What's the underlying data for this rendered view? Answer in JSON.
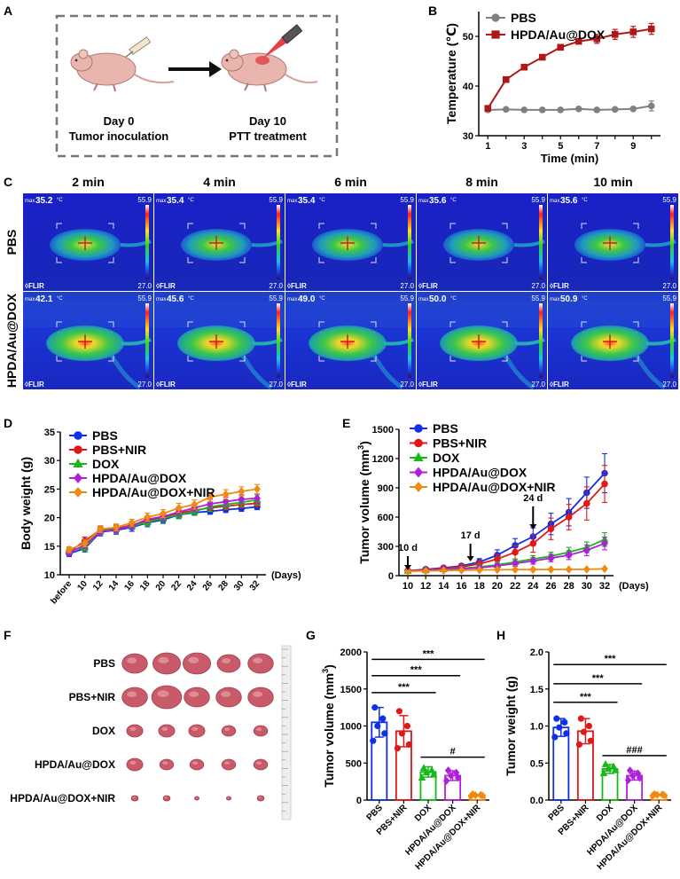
{
  "panel_labels": {
    "a": "A",
    "b": "B",
    "c": "C",
    "d": "D",
    "e": "E",
    "f": "F",
    "g": "G",
    "h": "H"
  },
  "panel_a": {
    "day0_line1": "Day 0",
    "day0_line2": "Tumor inoculation",
    "day10_line1": "Day 10",
    "day10_line2": "PTT treatment"
  },
  "panel_c": {
    "times": [
      "2 min",
      "4 min",
      "6 min",
      "8 min",
      "10 min"
    ],
    "rows": [
      {
        "label": "PBS",
        "max_values": [
          "35.2",
          "35.4",
          "35.4",
          "35.6",
          "35.6"
        ]
      },
      {
        "label": "HPDA/Au@DOX",
        "max_values": [
          "42.1",
          "45.6",
          "49.0",
          "50.0",
          "50.9"
        ]
      }
    ],
    "max_prefix": "max",
    "unit": "°C",
    "scale_max": "55.9",
    "scale_min": "27.0",
    "brand": "FLIR",
    "palette": {
      "bg": "#1a1ec8",
      "hot": "#ffe020"
    }
  },
  "panel_f": {
    "groups": [
      "PBS",
      "PBS+NIR",
      "DOX",
      "HPDA/Au@DOX",
      "HPDA/Au@DOX+NIR"
    ],
    "tumor_color": "#c85a6a"
  },
  "colors": {
    "PBS": "#1030e8",
    "PBS+NIR": "#e01818",
    "DOX": "#18b818",
    "HPDA/Au@DOX": "#b020d8",
    "HPDA/Au@DOX+NIR": "#f08a10",
    "B_PBS": "#808080",
    "B_HPDA": "#b01818"
  },
  "chart_data": [
    {
      "id": "B",
      "type": "line",
      "xlabel": "Time (min)",
      "ylabel": "Temperature (℃)",
      "xlim": [
        0.5,
        10.5
      ],
      "ylim": [
        30,
        55
      ],
      "xticks": [
        1,
        3,
        5,
        7,
        9
      ],
      "yticks": [
        30,
        40,
        50
      ],
      "x": [
        1,
        2,
        3,
        4,
        5,
        6,
        7,
        8,
        9,
        10
      ],
      "series": [
        {
          "name": "PBS",
          "color": "#808080",
          "marker": "circle",
          "values": [
            35.2,
            35.3,
            35.2,
            35.2,
            35.2,
            35.4,
            35.2,
            35.3,
            35.4,
            36.0
          ],
          "errors": [
            0.2,
            0.2,
            0.2,
            0.2,
            0.2,
            0.2,
            0.2,
            0.2,
            0.3,
            1.0
          ]
        },
        {
          "name": "HPDA/Au@DOX",
          "color": "#b01818",
          "marker": "square",
          "values": [
            35.5,
            41.3,
            43.8,
            45.8,
            47.8,
            49.0,
            49.5,
            50.4,
            50.9,
            51.5
          ],
          "errors": [
            0.3,
            0.4,
            0.4,
            0.4,
            0.4,
            0.5,
            0.9,
            1.0,
            1.1,
            1.1
          ]
        }
      ]
    },
    {
      "id": "D",
      "type": "line",
      "xlabel": "(Days)",
      "ylabel": "Body weight (g)",
      "categories": [
        "before",
        "10",
        "12",
        "14",
        "16",
        "18",
        "20",
        "22",
        "24",
        "26",
        "28",
        "30",
        "32"
      ],
      "ylim": [
        10,
        35
      ],
      "yticks": [
        10,
        15,
        20,
        25,
        30,
        35
      ],
      "series": [
        {
          "name": "PBS",
          "values": [
            13.7,
            14.6,
            17.5,
            17.8,
            18.3,
            19.1,
            19.6,
            20.5,
            20.9,
            21.1,
            21.4,
            21.6,
            21.9
          ],
          "errors": [
            0.5,
            0.6,
            0.7,
            0.7,
            0.7,
            0.7,
            0.6,
            0.6,
            0.5,
            0.5,
            0.5,
            0.5,
            0.5
          ]
        },
        {
          "name": "PBS+NIR",
          "values": [
            14.0,
            15.9,
            17.9,
            18.1,
            18.7,
            19.4,
            20.1,
            20.8,
            21.3,
            21.7,
            22.0,
            22.3,
            22.5
          ],
          "errors": [
            0.6,
            0.7,
            0.6,
            0.6,
            0.6,
            0.6,
            0.6,
            0.6,
            0.6,
            0.6,
            0.6,
            0.6,
            0.6
          ]
        },
        {
          "name": "DOX",
          "values": [
            14.2,
            14.8,
            17.7,
            18.0,
            18.5,
            19.2,
            19.9,
            20.5,
            21.1,
            21.9,
            22.3,
            22.7,
            23.1
          ],
          "errors": [
            0.5,
            0.6,
            0.6,
            0.6,
            0.6,
            0.6,
            0.7,
            0.7,
            0.7,
            0.8,
            0.8,
            0.8,
            0.9
          ]
        },
        {
          "name": "HPDA/Au@DOX",
          "values": [
            13.9,
            15.2,
            17.6,
            17.9,
            18.6,
            19.7,
            20.2,
            21.0,
            21.7,
            22.4,
            22.8,
            23.2,
            23.4
          ],
          "errors": [
            0.5,
            0.6,
            0.6,
            0.6,
            0.6,
            0.6,
            0.7,
            0.7,
            0.7,
            0.8,
            0.8,
            0.8,
            0.8
          ]
        },
        {
          "name": "HPDA/Au@DOX+NIR",
          "values": [
            14.4,
            15.5,
            18.0,
            18.3,
            19.1,
            20.1,
            20.7,
            21.7,
            22.3,
            23.6,
            24.1,
            24.6,
            25.0
          ],
          "errors": [
            0.5,
            0.6,
            0.6,
            0.6,
            0.6,
            0.7,
            0.7,
            0.8,
            0.8,
            0.8,
            0.8,
            0.8,
            0.8
          ]
        }
      ]
    },
    {
      "id": "E",
      "type": "line",
      "xlabel": "(Days)",
      "ylabel": "Tumor volume (mm3)",
      "categories": [
        "10",
        "12",
        "14",
        "16",
        "18",
        "20",
        "22",
        "24",
        "26",
        "28",
        "30",
        "32"
      ],
      "ylim": [
        0,
        1500
      ],
      "yticks": [
        0,
        300,
        600,
        900,
        1200,
        1500
      ],
      "annotations": [
        {
          "label": "10 d",
          "at": "10"
        },
        {
          "label": "17 d",
          "at": "17"
        },
        {
          "label": "24 d",
          "at": "24"
        }
      ],
      "series": [
        {
          "name": "PBS",
          "values": [
            50,
            65,
            80,
            100,
            140,
            210,
            310,
            400,
            530,
            650,
            850,
            1050
          ],
          "errors": [
            10,
            12,
            15,
            20,
            35,
            55,
            70,
            90,
            110,
            140,
            160,
            200
          ]
        },
        {
          "name": "PBS+NIR",
          "values": [
            52,
            60,
            75,
            90,
            120,
            170,
            240,
            330,
            480,
            600,
            740,
            940
          ],
          "errors": [
            10,
            12,
            15,
            20,
            35,
            50,
            70,
            90,
            110,
            130,
            170,
            190
          ]
        },
        {
          "name": "DOX",
          "values": [
            48,
            55,
            65,
            75,
            90,
            110,
            140,
            170,
            200,
            240,
            290,
            370
          ],
          "errors": [
            8,
            10,
            12,
            15,
            20,
            25,
            30,
            35,
            40,
            50,
            55,
            70
          ]
        },
        {
          "name": "HPDA/Au@DOX",
          "values": [
            48,
            55,
            62,
            70,
            80,
            100,
            125,
            150,
            180,
            210,
            260,
            330
          ],
          "errors": [
            8,
            10,
            12,
            14,
            18,
            22,
            28,
            32,
            38,
            45,
            55,
            65
          ]
        },
        {
          "name": "HPDA/Au@DOX+NIR",
          "values": [
            45,
            48,
            52,
            55,
            58,
            60,
            62,
            62,
            63,
            64,
            65,
            70
          ],
          "errors": [
            5,
            5,
            5,
            5,
            5,
            5,
            5,
            5,
            5,
            5,
            5,
            6
          ]
        }
      ]
    },
    {
      "id": "G",
      "type": "bar",
      "ylabel": "Tumor volume (mm3)",
      "ylim": [
        0,
        2000
      ],
      "yticks": [
        0,
        500,
        1000,
        1500,
        2000
      ],
      "categories": [
        "PBS",
        "PBS+NIR",
        "DOX",
        "HPDA/Au@DOX",
        "HPDA/Au@DOX+NIR"
      ],
      "values": [
        1050,
        930,
        380,
        330,
        65
      ],
      "errors": [
        200,
        210,
        70,
        65,
        10
      ],
      "points": [
        [
          1250,
          1100,
          1000,
          900,
          800
        ],
        [
          1200,
          1000,
          900,
          750,
          700
        ],
        [
          430,
          400,
          370,
          340,
          300
        ],
        [
          400,
          370,
          330,
          300,
          260
        ],
        [
          80,
          70,
          65,
          60,
          55
        ]
      ],
      "sig": [
        {
          "from": 0,
          "to": 4,
          "label": "***",
          "y": 1900
        },
        {
          "from": 0,
          "to": 3,
          "label": "***",
          "y": 1680
        },
        {
          "from": 0,
          "to": 2,
          "label": "***",
          "y": 1450
        },
        {
          "from": 2,
          "to": 4,
          "label": "#",
          "y": 580
        }
      ]
    },
    {
      "id": "H",
      "type": "bar",
      "ylabel": "Tumor weight (g)",
      "ylim": [
        0,
        2.0
      ],
      "yticks": [
        0.0,
        0.5,
        1.0,
        1.5,
        2.0
      ],
      "categories": [
        "PBS",
        "PBS+NIR",
        "DOX",
        "HPDA/Au@DOX",
        "HPDA/Au@DOX+NIR"
      ],
      "values": [
        0.98,
        0.93,
        0.42,
        0.33,
        0.07
      ],
      "errors": [
        0.12,
        0.17,
        0.06,
        0.06,
        0.01
      ],
      "points": [
        [
          1.1,
          1.05,
          0.98,
          0.9,
          0.85
        ],
        [
          1.1,
          1.0,
          0.92,
          0.8,
          0.75
        ],
        [
          0.48,
          0.45,
          0.42,
          0.4,
          0.36
        ],
        [
          0.4,
          0.36,
          0.33,
          0.3,
          0.27
        ],
        [
          0.08,
          0.075,
          0.07,
          0.065,
          0.06
        ]
      ],
      "sig": [
        {
          "from": 0,
          "to": 4,
          "label": "***",
          "y": 1.83
        },
        {
          "from": 0,
          "to": 3,
          "label": "***",
          "y": 1.57
        },
        {
          "from": 0,
          "to": 2,
          "label": "***",
          "y": 1.32
        },
        {
          "from": 2,
          "to": 4,
          "label": "###",
          "y": 0.6
        }
      ]
    }
  ]
}
